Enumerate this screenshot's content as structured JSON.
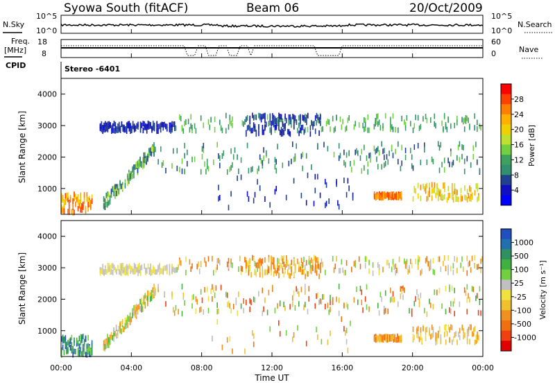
{
  "header": {
    "station": "Syowa South (fitACF)",
    "beam": "Beam 06",
    "date": "20/Oct/2009"
  },
  "noise_panel": {
    "left_label": "N.Sky",
    "right_label": "N.Search",
    "left_ticks": [
      "10^5",
      "10^0"
    ],
    "right_ticks": [
      "10^5",
      "10^0"
    ]
  },
  "freq_panel": {
    "left_label_1": "Freq.",
    "left_label_2": "[MHz]",
    "right_label": "Nave",
    "left_ticks": [
      "18",
      "8"
    ],
    "right_ticks": [
      "60",
      "0"
    ]
  },
  "cpid": {
    "label": "CPID",
    "value": "Stereo -6401"
  },
  "power_panel": {
    "ylabel": "Slant Range [km]",
    "yticks": [
      "4000",
      "3000",
      "2000",
      "1000"
    ],
    "colorbar_label": "Power [dB]",
    "colorbar_ticks": [
      "28",
      "24",
      "20",
      "16",
      "12",
      "8",
      "4"
    ],
    "colorbar_colors": [
      "#ff0000",
      "#ff4000",
      "#ff8000",
      "#ffb000",
      "#f0d000",
      "#c0e030",
      "#70d040",
      "#40a060",
      "#309070",
      "#204090",
      "#1010c0",
      "#0000ff"
    ]
  },
  "velocity_panel": {
    "ylabel": "Slant Range [km]",
    "yticks": [
      "4000",
      "3000",
      "2000",
      "1000"
    ],
    "colorbar_label": "Velocity [m s⁻¹]",
    "colorbar_ticks": [
      "1000",
      "500",
      "100",
      "25",
      "-25",
      "-100",
      "-500",
      "-1000"
    ],
    "colorbar_colors": [
      "#2050c0",
      "#2070b0",
      "#309060",
      "#40b040",
      "#70d040",
      "#c0c0c0",
      "#f0e040",
      "#f0c030",
      "#f09020",
      "#f07010",
      "#f04010",
      "#e00000"
    ]
  },
  "xaxis": {
    "label": "Time UT",
    "ticks": [
      "00:00",
      "04:00",
      "08:00",
      "12:00",
      "16:00",
      "20:00",
      "00:00"
    ]
  },
  "chart_data": [
    {
      "type": "line",
      "title": "N.Sky / N.Search",
      "x_range_hours": [
        0,
        24
      ],
      "ylim_log10": [
        0,
        5
      ],
      "note": "noise level near 10^3 throughout the day"
    },
    {
      "type": "line",
      "title": "Freq. / Nave",
      "x_range_hours": [
        0,
        24
      ],
      "freq_ylim_mhz": [
        8,
        18
      ],
      "nave_ylim": [
        0,
        60
      ]
    },
    {
      "type": "heatmap",
      "title": "Power [dB]",
      "x": "Time UT (hours)",
      "y": "Slant Range [km]",
      "xlim": [
        0,
        24
      ],
      "ylim": [
        180,
        4500
      ],
      "clim": [
        0,
        30
      ],
      "regions": [
        {
          "t0": 0.0,
          "t1": 1.8,
          "r0": 200,
          "r1": 800,
          "value": 20
        },
        {
          "t0": 2.4,
          "t1": 5.4,
          "r0": 500,
          "r1": 2300,
          "value": 10
        },
        {
          "t0": 2.2,
          "t1": 6.5,
          "r0": 2800,
          "r1": 3050,
          "value": 5
        },
        {
          "t0": 10.5,
          "t1": 14.8,
          "r0": 2700,
          "r1": 3300,
          "value": 5
        },
        {
          "t0": 9.0,
          "t1": 16.0,
          "r0": 1600,
          "r1": 2200,
          "value": 6
        },
        {
          "t0": 17.8,
          "t1": 19.4,
          "r0": 700,
          "r1": 800,
          "value": 22
        },
        {
          "t0": 20.0,
          "t1": 23.8,
          "r0": 650,
          "r1": 1100,
          "value": 19
        }
      ]
    },
    {
      "type": "heatmap",
      "title": "Velocity [m s-1]",
      "x": "Time UT (hours)",
      "y": "Slant Range [km]",
      "xlim": [
        0,
        24
      ],
      "ylim": [
        180,
        4500
      ],
      "clim": [
        -1000,
        1000
      ],
      "regions": [
        {
          "t0": 0.0,
          "t1": 1.8,
          "r0": 200,
          "r1": 800,
          "value": 100
        },
        {
          "t0": 2.4,
          "t1": 5.4,
          "r0": 500,
          "r1": 2300,
          "value": -100
        },
        {
          "t0": 2.2,
          "t1": 6.5,
          "r0": 2800,
          "r1": 3050,
          "value": 0
        },
        {
          "t0": 10.5,
          "t1": 14.8,
          "r0": 2700,
          "r1": 3300,
          "value": -100
        },
        {
          "t0": 17.8,
          "t1": 19.4,
          "r0": 700,
          "r1": 800,
          "value": -500
        },
        {
          "t0": 20.0,
          "t1": 23.8,
          "r0": 650,
          "r1": 1100,
          "value": -200
        }
      ]
    }
  ]
}
